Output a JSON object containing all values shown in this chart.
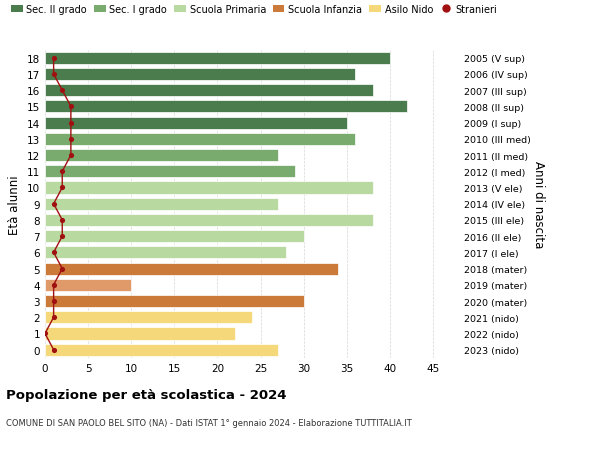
{
  "ages": [
    18,
    17,
    16,
    15,
    14,
    13,
    12,
    11,
    10,
    9,
    8,
    7,
    6,
    5,
    4,
    3,
    2,
    1,
    0
  ],
  "values": [
    40,
    36,
    38,
    42,
    35,
    36,
    27,
    29,
    38,
    27,
    38,
    30,
    28,
    34,
    10,
    30,
    24,
    22,
    27
  ],
  "stranieri": [
    1,
    1,
    2,
    3,
    3,
    3,
    3,
    2,
    2,
    1,
    2,
    2,
    1,
    2,
    1,
    1,
    1,
    0,
    1
  ],
  "right_labels": [
    "2005 (V sup)",
    "2006 (IV sup)",
    "2007 (III sup)",
    "2008 (II sup)",
    "2009 (I sup)",
    "2010 (III med)",
    "2011 (II med)",
    "2012 (I med)",
    "2013 (V ele)",
    "2014 (IV ele)",
    "2015 (III ele)",
    "2016 (II ele)",
    "2017 (I ele)",
    "2018 (mater)",
    "2019 (mater)",
    "2020 (mater)",
    "2021 (nido)",
    "2022 (nido)",
    "2023 (nido)"
  ],
  "bar_colors": [
    "#4a7c4e",
    "#4a7c4e",
    "#4a7c4e",
    "#4a7c4e",
    "#4a7c4e",
    "#7aab6e",
    "#7aab6e",
    "#7aab6e",
    "#b8d9a0",
    "#b8d9a0",
    "#b8d9a0",
    "#b8d9a0",
    "#b8d9a0",
    "#cc7a3a",
    "#e09a6a",
    "#cc7a3a",
    "#f5d87a",
    "#f5d87a",
    "#f5d87a"
  ],
  "legend_labels": [
    "Sec. II grado",
    "Sec. I grado",
    "Scuola Primaria",
    "Scuola Infanzia",
    "Asilo Nido",
    "Stranieri"
  ],
  "legend_colors": [
    "#4a7c4e",
    "#7aab6e",
    "#b8d9a0",
    "#cc7a3a",
    "#f5d87a",
    "#a01010"
  ],
  "title": "Popolazione per età scolastica - 2024",
  "subtitle": "COMUNE DI SAN PAOLO BEL SITO (NA) - Dati ISTAT 1° gennaio 2024 - Elaborazione TUTTITALIA.IT",
  "ylabel": "Età alunni",
  "right_ylabel": "Anni di nascita",
  "xlim": [
    0,
    48
  ],
  "xticks": [
    0,
    5,
    10,
    15,
    20,
    25,
    30,
    35,
    40,
    45
  ],
  "bg_color": "#ffffff",
  "stranieri_color": "#a01010",
  "bar_height": 0.75
}
